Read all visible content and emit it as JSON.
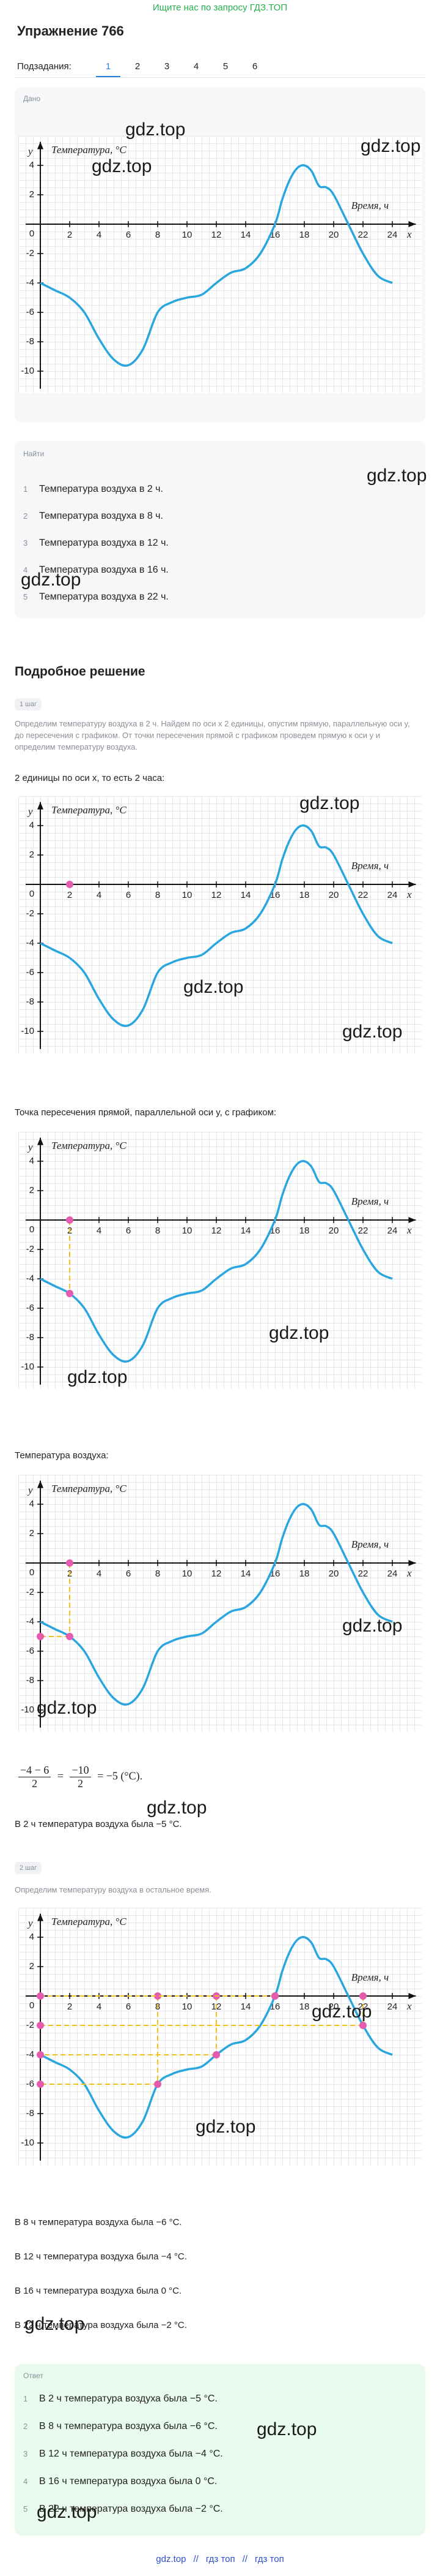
{
  "header": {
    "banner": "Ищите нас по запросу ГДЗ.ТОП",
    "title": "Упражнение 766",
    "subtasks_label": "Подзадания:",
    "subtasks": [
      "1",
      "2",
      "3",
      "4",
      "5",
      "6"
    ]
  },
  "given": {
    "label": "Дано"
  },
  "find": {
    "label": "Найти",
    "items": [
      {
        "num": "1",
        "text": "Температура воздуха в 2 ч."
      },
      {
        "num": "2",
        "text": "Температура воздуха в 8 ч."
      },
      {
        "num": "3",
        "text": "Температура воздуха в 12 ч."
      },
      {
        "num": "4",
        "text": "Температура воздуха в 16 ч."
      },
      {
        "num": "5",
        "text": "Температура воздуха в 22 ч."
      }
    ]
  },
  "solution": {
    "title": "Подробное решение",
    "step1": {
      "label": "1 шаг",
      "text": "Определим температуру воздуха в 2 ч. Найдем по оси x 2 единицы, опустим прямую, параллельную оси y, до пересечения с графиком. От точки пересечения прямой с графиком проведем прямую к оси y и определим температуру воздуха.",
      "caption1": "2 единицы по оси x, то есть 2 часа:",
      "caption2": "Точка пересечения прямой, параллельной оси y, с графиком:",
      "caption3": "Температура воздуха:",
      "formula": {
        "num1": "−4 − 6",
        "den1": "2",
        "eq1": "=",
        "num2": "−10",
        "den2": "2",
        "tail": "= −5 (°C)."
      },
      "result": "В 2 ч температура воздуха была −5 °C."
    },
    "step2": {
      "label": "2 шаг",
      "text": "Определим температуру воздуха в остальное время.",
      "results": [
        "В 8 ч температура воздуха была −6 °C.",
        "В 12 ч температура воздуха была −4 °C.",
        "В 16 ч температура воздуха была 0 °C.",
        "В 22 ч температура воздуха была −2 °C."
      ]
    }
  },
  "answer": {
    "label": "Ответ",
    "items": [
      {
        "num": "1",
        "text": "В 2 ч температура воздуха была −5 °C."
      },
      {
        "num": "2",
        "text": "В 8 ч температура воздуха была −6 °C."
      },
      {
        "num": "3",
        "text": "В 12 ч температура воздуха была −4 °C."
      },
      {
        "num": "4",
        "text": "В 16 ч температура воздуха была 0 °C."
      },
      {
        "num": "5",
        "text": "В 22 ч температура воздуха была −2 °C."
      }
    ]
  },
  "footer": {
    "links": [
      "gdz.top",
      "гдз топ",
      "гдз топ"
    ],
    "separator": "//"
  },
  "graph": {
    "y_label": "Температура, °C",
    "x_label": "Время, ч",
    "y_axis": "y",
    "x_axis": "x",
    "origin": 0,
    "xticks": [
      2,
      4,
      6,
      8,
      10,
      12,
      14,
      16,
      18,
      20,
      22,
      24
    ],
    "yticks": [
      -10,
      -8,
      -6,
      -4,
      -2,
      2,
      4
    ],
    "curve_x": [
      0,
      1,
      2,
      3,
      4,
      5,
      6,
      7,
      8,
      9,
      10,
      11,
      12,
      13,
      14,
      15,
      16,
      16.5,
      17,
      17.5,
      18,
      18.5,
      19,
      19.5,
      20,
      21,
      22,
      23,
      24
    ],
    "curve_y": [
      -4,
      -4.5,
      -5,
      -6,
      -7.8,
      -9.2,
      -9.6,
      -8.5,
      -6,
      -5.3,
      -5,
      -4.8,
      -4,
      -3.3,
      -3,
      -2,
      0,
      1.7,
      3,
      3.8,
      4,
      3.6,
      2.6,
      2.5,
      2,
      0,
      -2,
      -3.5,
      -4
    ]
  },
  "figures": [
    {
      "x": [
        2
      ],
      "y": [
        -5
      ],
      "show": "axis"
    },
    {
      "x": [
        2
      ],
      "y": [
        -5
      ],
      "show": "vertical"
    },
    {
      "x": [
        2
      ],
      "y": [
        -5
      ],
      "show": "both"
    },
    {
      "x": [
        8,
        12,
        16,
        22
      ],
      "y": [
        -6,
        -4,
        0,
        -2
      ],
      "show": "both"
    }
  ],
  "watermarks": [
    "gdz.top",
    "gdz.top",
    "gdz.top",
    "gdz.top",
    "gdz.top",
    "gdz.top",
    "gdz.top",
    "gdz.top",
    "gdz.top",
    "gdz.top",
    "gdz.top",
    "gdz.top",
    "gdz.top",
    "gdz.top",
    "gdz.top",
    "gdz.top",
    "gdz.top",
    "gdz.top"
  ]
}
